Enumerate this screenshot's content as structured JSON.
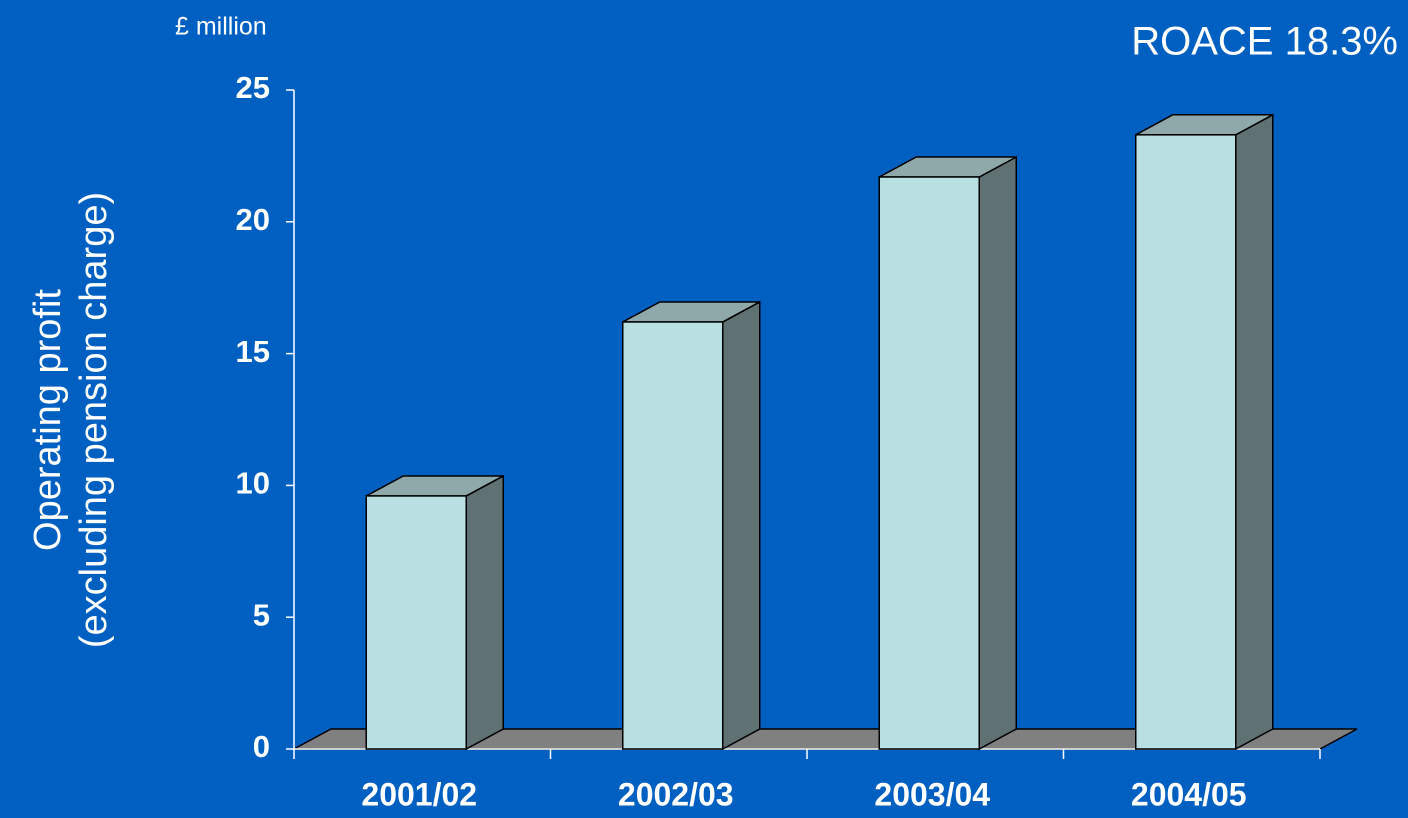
{
  "chart_data": {
    "type": "bar3d",
    "unit_label": "£ million",
    "annotation": "ROACE 18.3%",
    "ylabel": [
      "Operating profit",
      "(excluding pension charge)"
    ],
    "categories": [
      "2001/02",
      "2002/03",
      "2003/04",
      "2004/05"
    ],
    "values": [
      9.6,
      16.2,
      21.7,
      23.3
    ],
    "color": "#b8dfe2",
    "ylim": [
      0,
      25
    ],
    "yticks": [
      0,
      5,
      10,
      15,
      20,
      25
    ],
    "grid": false
  }
}
